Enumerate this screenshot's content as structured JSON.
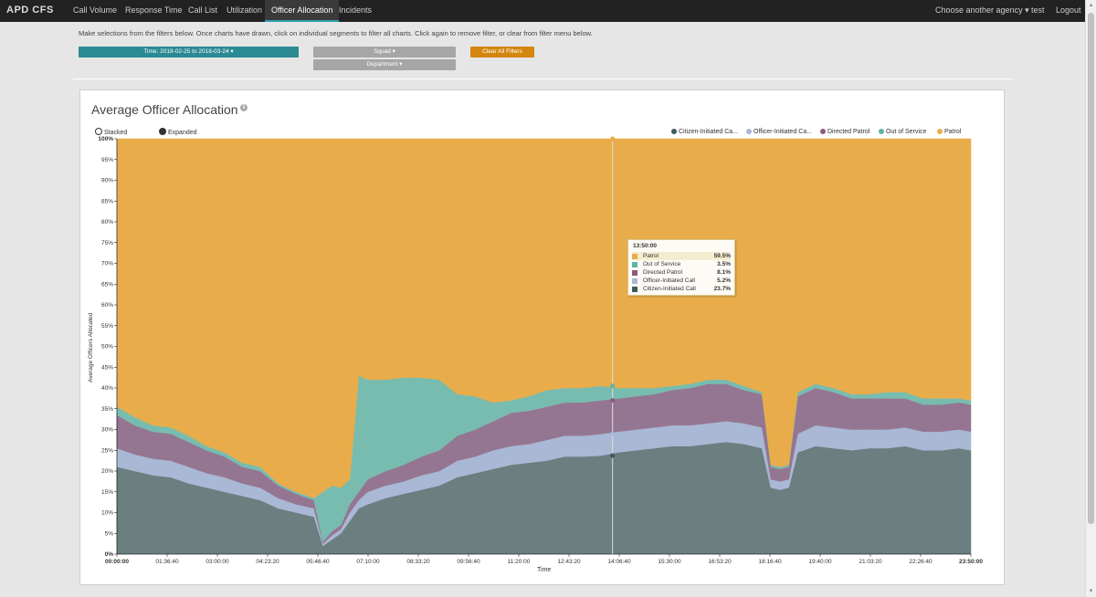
{
  "navbar": {
    "brand": "APD CFS",
    "items": [
      {
        "label": "Call Volume",
        "active": false
      },
      {
        "label": "Response Time",
        "active": false
      },
      {
        "label": "Call List",
        "active": false
      },
      {
        "label": "Utilization",
        "active": false
      },
      {
        "label": "Officer Allocation",
        "active": true
      },
      {
        "label": "Incidents",
        "active": false
      }
    ],
    "right": {
      "agency": "Choose another agency ▾",
      "user": "test",
      "logout": "Logout"
    }
  },
  "filters": {
    "instructions": "Make selections from the filters below. Once charts have drawn, click on individual segments to filter all charts. Click again to remove filter, or clear from filter menu below.",
    "time": "Time: 2018-02-25 to 2018-03-24 ▾",
    "squad": "Squad ▾",
    "department": "Department ▾",
    "clear": "Clear All Filters"
  },
  "panel": {
    "title": "Average Officer Allocation",
    "info_icon": "info-icon",
    "modes": {
      "stacked": "Stacked",
      "expanded": "Expanded",
      "selected": "expanded"
    }
  },
  "chart_data": {
    "type": "area",
    "stacked": true,
    "xlabel": "Time",
    "ylabel": "Average Officers Allocated",
    "ylim": [
      0,
      100
    ],
    "y_ticks": [
      "0%",
      "5%",
      "10%",
      "15%",
      "20%",
      "25%",
      "30%",
      "35%",
      "40%",
      "45%",
      "50%",
      "55%",
      "60%",
      "65%",
      "70%",
      "75%",
      "80%",
      "85%",
      "90%",
      "95%",
      "100%"
    ],
    "x_ticks": [
      "00:00:00",
      "01:36:40",
      "03:00:00",
      "04:23:20",
      "05:46:40",
      "07:10:00",
      "08:33:20",
      "09:56:40",
      "11:20:00",
      "12:43:20",
      "14:06:40",
      "15:30:00",
      "16:53:20",
      "18:16:40",
      "19:40:00",
      "21:03:20",
      "22:26:40",
      "23:50:00"
    ],
    "x_range": [
      "00:00:00",
      "23:50:00"
    ],
    "legend": [
      {
        "name": "Citizen-Initiated Ca...",
        "color": "#3d5a5c"
      },
      {
        "name": "Officer-Initiated Ca...",
        "color": "#a9b8d4"
      },
      {
        "name": "Directed Patrol",
        "color": "#8d5b7c"
      },
      {
        "name": "Out of Service",
        "color": "#5fb5a5"
      },
      {
        "name": "Patrol",
        "color": "#e8ad4a"
      }
    ],
    "x_hours": [
      0,
      0.5,
      1,
      1.5,
      2,
      2.5,
      3,
      3.5,
      4,
      4.5,
      5,
      5.5,
      5.75,
      6,
      6.25,
      6.5,
      6.75,
      7,
      7.5,
      8,
      8.5,
      9,
      9.5,
      10,
      10.5,
      11,
      11.5,
      12,
      12.5,
      13,
      13.5,
      14,
      14.5,
      15,
      15.5,
      16,
      16.5,
      17,
      17.5,
      18,
      18.25,
      18.5,
      18.75,
      19,
      19.5,
      20,
      20.5,
      21,
      21.5,
      22,
      22.5,
      23,
      23.5,
      23.833
    ],
    "series": [
      {
        "name": "Citizen-Initiated Call",
        "values": [
          21,
          20,
          19,
          18.5,
          17,
          16,
          15,
          14,
          13,
          11,
          10,
          9,
          2,
          3.5,
          5,
          8,
          11,
          12,
          13.5,
          14.5,
          15.5,
          16.5,
          18.5,
          19.5,
          20.5,
          21.5,
          22,
          22.5,
          23.5,
          23.5,
          23.7,
          24.5,
          25,
          25.5,
          26,
          26,
          26.5,
          27,
          26.5,
          25.5,
          16,
          15.5,
          16,
          24.5,
          26,
          25.5,
          25,
          25.5,
          25.5,
          26,
          25,
          25,
          25.5,
          25
        ]
      },
      {
        "name": "Officer-Initiated Call",
        "values": [
          4.5,
          4,
          4,
          4,
          4,
          3.5,
          3.5,
          3,
          3,
          2.5,
          2,
          2,
          0.5,
          1,
          1,
          2,
          2,
          3,
          3,
          3,
          3.5,
          3.5,
          4,
          4,
          4.5,
          4.5,
          4.5,
          5,
          5,
          5,
          5.2,
          5,
          5,
          5,
          5,
          5,
          5,
          5,
          5,
          5,
          2,
          2,
          2,
          4.5,
          5,
          5,
          5,
          4.5,
          4.5,
          4.5,
          4.5,
          4.5,
          4.5,
          4.5
        ]
      },
      {
        "name": "Directed Patrol",
        "values": [
          8,
          7,
          6.5,
          6.5,
          6,
          5.5,
          5,
          4,
          4,
          3,
          2.5,
          2,
          0.5,
          1,
          1,
          2,
          2,
          3,
          3.5,
          4,
          4.5,
          5,
          6,
          6.5,
          7,
          8,
          8,
          8,
          8,
          8,
          8.1,
          8,
          8,
          8,
          8.5,
          9,
          9.5,
          9,
          8,
          8,
          3,
          3,
          3,
          9,
          9,
          8.5,
          7.5,
          7.5,
          7.5,
          7,
          6.5,
          6.5,
          6.5,
          6.5
        ]
      },
      {
        "name": "Out of Service",
        "values": [
          2,
          2,
          1.5,
          1.5,
          1.5,
          1,
          1,
          1,
          1,
          0.5,
          0.5,
          0.5,
          12,
          11,
          9,
          6,
          28,
          24,
          22,
          21,
          19,
          17,
          10,
          8,
          4.5,
          3,
          3.5,
          4,
          3.5,
          3.5,
          3.5,
          2.5,
          2,
          1.5,
          1,
          1,
          1,
          1,
          1,
          0.5,
          0.5,
          0.5,
          0.5,
          1,
          1,
          1,
          1,
          1,
          1.5,
          1.5,
          1.5,
          1.5,
          1,
          1
        ]
      },
      {
        "name": "Patrol",
        "values": [
          64.5,
          67,
          69,
          69.5,
          71.5,
          74,
          75.5,
          78,
          79,
          83,
          85,
          86.5,
          85,
          83.5,
          84,
          82,
          57,
          58,
          58,
          57.5,
          57.5,
          58,
          61.5,
          62,
          63.5,
          63,
          62,
          60.5,
          60,
          60,
          59.5,
          60,
          60,
          60,
          59.5,
          59,
          58,
          58,
          59.5,
          61,
          78.5,
          79,
          78.5,
          61,
          59,
          60,
          61.5,
          61.5,
          61,
          61,
          62.5,
          62.5,
          62.5,
          63
        ]
      }
    ],
    "hover": {
      "time": "13:50:00",
      "rows": [
        {
          "name": "Patrol",
          "value": "59.5%",
          "color": "#e8ad4a"
        },
        {
          "name": "Out of Service",
          "value": "3.5%",
          "color": "#5fb5a5"
        },
        {
          "name": "Directed Patrol",
          "value": "8.1%",
          "color": "#8d5b7c"
        },
        {
          "name": "Officer-Initiated Call",
          "value": "5.2%",
          "color": "#a9b8d4"
        },
        {
          "name": "Citizen-Initiated Call",
          "value": "23.7%",
          "color": "#3d5a5c"
        }
      ]
    }
  }
}
